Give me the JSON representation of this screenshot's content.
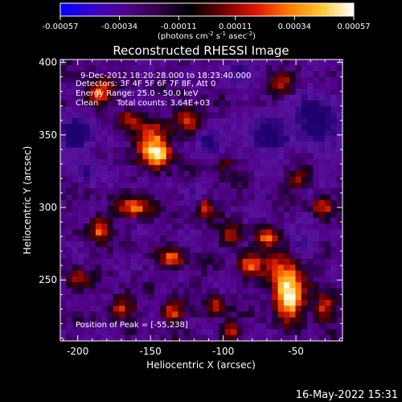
{
  "colorbar": {
    "tick_labels": [
      "-0.00057",
      "-0.00034",
      "-0.00011",
      "0.00011",
      "0.00034",
      "0.00057"
    ],
    "tick_values": [
      -0.00057,
      -0.00034,
      -0.00011,
      0.00011,
      0.00034,
      0.00057
    ],
    "range": [
      -0.00057,
      0.00057
    ],
    "unit_base": "(photons cm",
    "unit_exp1": "-2",
    "unit_mid1": " s",
    "unit_exp2": "-1",
    "unit_mid2": " asec",
    "unit_exp3": "-2",
    "unit_end": ")",
    "colors": [
      "#0000ff",
      "#3b00c8",
      "#50008c",
      "#320046",
      "#000000",
      "#700000",
      "#e01400",
      "#ff7800",
      "#ffc830",
      "#ffffff"
    ]
  },
  "info": {
    "time": "9-Dec-2012 18:20:28.000 to 18:23:40.000",
    "detectors": "Detectors: 3F 4F 5F 6F 7F 8F, Att 0",
    "energy": "Energy Range: 25.0 - 50.0 keV",
    "clean_label": "Clean",
    "counts": "Total counts: 3.64E+03",
    "peak": "Position of Peak = [-55,238]"
  },
  "footer": {
    "timestamp": "16-May-2022 15:31"
  },
  "chart_data": {
    "type": "heatmap",
    "title": "Reconstructed RHESSI Image",
    "xlabel": "Heliocentric X (arcsec)",
    "ylabel": "Heliocentric Y (arcsec)",
    "xlim": [
      -212,
      -18
    ],
    "ylim": [
      208,
      402
    ],
    "xticks": [
      -200,
      -150,
      -100,
      -50
    ],
    "xtick_labels": [
      "-200",
      "-150",
      "-100",
      "-50"
    ],
    "yticks": [
      250,
      300,
      350,
      400
    ],
    "ytick_labels": [
      "250",
      "300",
      "350",
      "400"
    ],
    "peak": [
      -55,
      238
    ],
    "sources": [
      {
        "x": -55,
        "y": 238,
        "sx": 7,
        "sy": 10,
        "amp": 1.0
      },
      {
        "x": -60,
        "y": 258,
        "sx": 9,
        "sy": 9,
        "amp": 0.55
      },
      {
        "x": -145,
        "y": 336,
        "sx": 7,
        "sy": 6,
        "amp": 0.9
      },
      {
        "x": -150,
        "y": 348,
        "sx": 8,
        "sy": 7,
        "amp": 0.55
      },
      {
        "x": -185,
        "y": 380,
        "sx": 6,
        "sy": 6,
        "amp": 0.65
      },
      {
        "x": -165,
        "y": 360,
        "sx": 5,
        "sy": 5,
        "amp": 0.45
      },
      {
        "x": -125,
        "y": 360,
        "sx": 6,
        "sy": 6,
        "amp": 0.55
      },
      {
        "x": -160,
        "y": 300,
        "sx": 8,
        "sy": 5,
        "amp": 0.6
      },
      {
        "x": -185,
        "y": 285,
        "sx": 5,
        "sy": 6,
        "amp": 0.55
      },
      {
        "x": -135,
        "y": 265,
        "sx": 6,
        "sy": 5,
        "amp": 0.55
      },
      {
        "x": -112,
        "y": 300,
        "sx": 5,
        "sy": 6,
        "amp": 0.5
      },
      {
        "x": -95,
        "y": 280,
        "sx": 5,
        "sy": 5,
        "amp": 0.5
      },
      {
        "x": -82,
        "y": 262,
        "sx": 5,
        "sy": 6,
        "amp": 0.55
      },
      {
        "x": -70,
        "y": 280,
        "sx": 5,
        "sy": 5,
        "amp": 0.5
      },
      {
        "x": -170,
        "y": 232,
        "sx": 6,
        "sy": 5,
        "amp": 0.5
      },
      {
        "x": -135,
        "y": 228,
        "sx": 6,
        "sy": 5,
        "amp": 0.55
      },
      {
        "x": -105,
        "y": 232,
        "sx": 5,
        "sy": 5,
        "amp": 0.5
      },
      {
        "x": -95,
        "y": 215,
        "sx": 5,
        "sy": 4,
        "amp": 0.5
      },
      {
        "x": -30,
        "y": 230,
        "sx": 5,
        "sy": 7,
        "amp": 0.55
      },
      {
        "x": -32,
        "y": 300,
        "sx": 5,
        "sy": 5,
        "amp": 0.45
      },
      {
        "x": -48,
        "y": 320,
        "sx": 5,
        "sy": 5,
        "amp": 0.4
      },
      {
        "x": -60,
        "y": 385,
        "sx": 6,
        "sy": 5,
        "amp": 0.45
      },
      {
        "x": -100,
        "y": 330,
        "sx": 5,
        "sy": 5,
        "amp": 0.35
      },
      {
        "x": -200,
        "y": 250,
        "sx": 5,
        "sy": 5,
        "amp": 0.4
      },
      {
        "x": -110,
        "y": 345,
        "sx": 6,
        "sy": 6,
        "amp": -0.55
      },
      {
        "x": -70,
        "y": 350,
        "sx": 10,
        "sy": 10,
        "amp": -0.5
      },
      {
        "x": -35,
        "y": 360,
        "sx": 10,
        "sy": 12,
        "amp": -0.6
      },
      {
        "x": -200,
        "y": 350,
        "sx": 9,
        "sy": 8,
        "amp": -0.55
      },
      {
        "x": -90,
        "y": 395,
        "sx": 7,
        "sy": 6,
        "amp": -0.4
      },
      {
        "x": -45,
        "y": 275,
        "sx": 6,
        "sy": 6,
        "amp": -0.35
      },
      {
        "x": -195,
        "y": 325,
        "sx": 6,
        "sy": 6,
        "amp": -0.4
      },
      {
        "x": -120,
        "y": 310,
        "sx": 5,
        "sy": 5,
        "amp": -0.3
      }
    ]
  }
}
